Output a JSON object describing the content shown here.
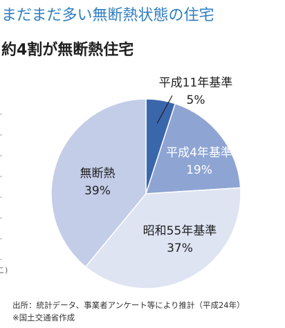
{
  "title": "まだまだ多い無断熱状態の住宅",
  "subtitle": "約4割が無断熱住宅",
  "edge_fragment": "こ)",
  "source": "出所：統計データ、事業者アンケート等により推計（平成24年）",
  "note": "※国土交通省作成",
  "colors": {
    "title": "#2f7ec2",
    "outline": "#ffffff"
  },
  "chart_data": {
    "type": "pie",
    "title": "約4割が無断熱住宅",
    "start": "12 o'clock, clockwise",
    "slices": [
      {
        "name": "平成11年基準",
        "value": 5,
        "label": "5%",
        "color": "#3a66ac"
      },
      {
        "name": "平成4年基準",
        "value": 19,
        "label": "19%",
        "color": "#8ea5d3"
      },
      {
        "name": "昭和55年基準",
        "value": 37,
        "label": "37%",
        "color": "#dee4f2"
      },
      {
        "name": "無断熱",
        "value": 39,
        "label": "39%",
        "color": "#c3cde8"
      }
    ]
  }
}
